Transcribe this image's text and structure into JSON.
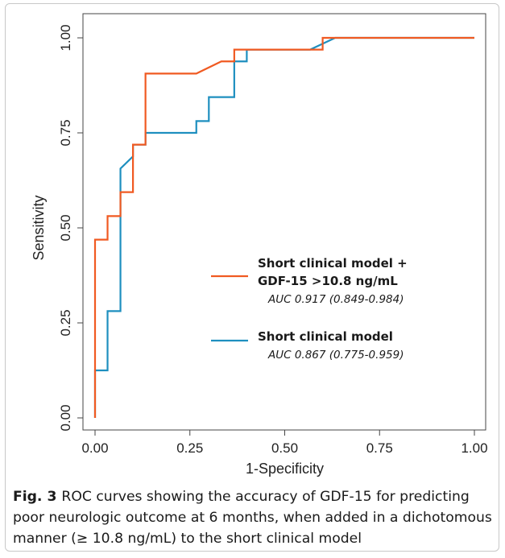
{
  "chart_data": {
    "type": "line",
    "xlabel": "1-Specificity",
    "ylabel": "Sensitivity",
    "xlim": [
      0,
      1
    ],
    "ylim": [
      0,
      1
    ],
    "xticks": [
      "0.00",
      "0.25",
      "0.50",
      "0.75",
      "1.00"
    ],
    "yticks": [
      "0.00",
      "0.25",
      "0.50",
      "0.75",
      "1.00"
    ],
    "grid": false,
    "legend_position": "center-right",
    "series": [
      {
        "name_lines": [
          "Short clinical model +",
          "GDF-15 >10.8 ng/mL"
        ],
        "auc": "AUC 0.917 (0.849-0.984)",
        "color": "#f05a22",
        "x": [
          0,
          0,
          0.033,
          0.033,
          0.067,
          0.067,
          0.1,
          0.1,
          0.133,
          0.133,
          0.267,
          0.333,
          0.367,
          0.367,
          0.6,
          0.6,
          1
        ],
        "y": [
          0,
          0.469,
          0.469,
          0.531,
          0.531,
          0.594,
          0.594,
          0.719,
          0.719,
          0.906,
          0.906,
          0.938,
          0.938,
          0.969,
          0.969,
          1,
          1
        ]
      },
      {
        "name_lines": [
          "Short clinical model"
        ],
        "auc": "AUC 0.867 (0.775-0.959)",
        "color": "#1e8fbf",
        "x": [
          0,
          0,
          0.033,
          0.033,
          0.067,
          0.067,
          0.1,
          0.1,
          0.133,
          0.133,
          0.267,
          0.267,
          0.3,
          0.3,
          0.367,
          0.367,
          0.4,
          0.4,
          0.567,
          0.633,
          1
        ],
        "y": [
          0,
          0.125,
          0.125,
          0.281,
          0.281,
          0.656,
          0.688,
          0.719,
          0.719,
          0.75,
          0.75,
          0.781,
          0.781,
          0.844,
          0.844,
          0.938,
          0.938,
          0.969,
          0.969,
          1,
          1
        ]
      }
    ]
  },
  "caption": {
    "label": "Fig. 3",
    "text": "ROC curves showing the accuracy of GDF-15 for predicting poor neurologic outcome at 6 months, when added in a dichotomous manner (≥ 10.8 ng/mL) to the short clinical model"
  }
}
